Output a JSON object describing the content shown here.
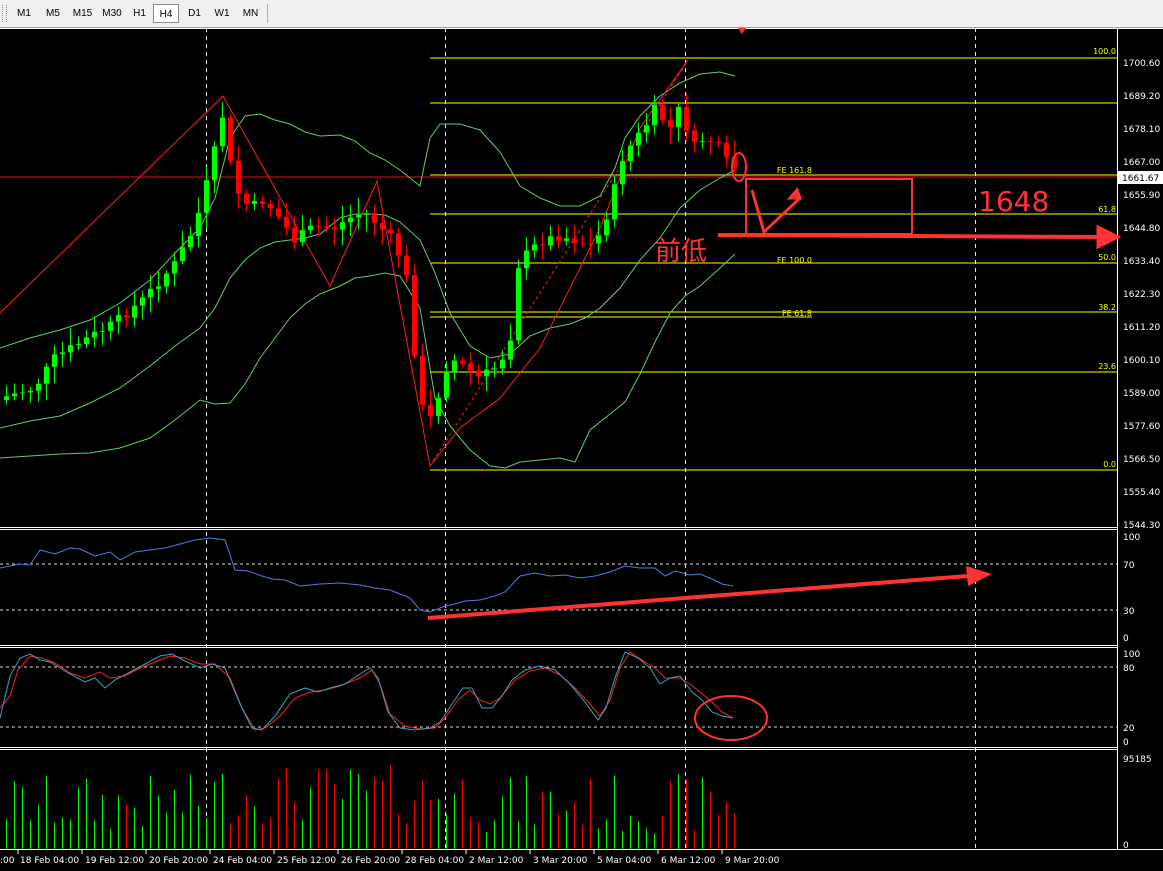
{
  "toolbar": {
    "timeframes": [
      "M1",
      "M5",
      "M15",
      "M30",
      "H1",
      "H4",
      "D1",
      "W1",
      "MN"
    ],
    "active": "H4"
  },
  "price_axis": {
    "labels": [
      "1700.60",
      "1689.20",
      "1678.10",
      "1667.00",
      "1655.90",
      "1644.80",
      "1633.40",
      "1622.30",
      "1611.20",
      "1600.10",
      "1589.00",
      "1577.60",
      "1566.50",
      "1555.40",
      "1544.30"
    ],
    "current_price": "1661.67"
  },
  "time_axis": {
    "labels": [
      "18 Feb 04:00",
      "19 Feb 12:00",
      "20 Feb 20:00",
      "24 Feb 04:00",
      "25 Feb 12:00",
      "26 Feb 20:00",
      "28 Feb 04:00",
      "2 Mar 12:00",
      "3 Mar 20:00",
      "5 Mar 04:00",
      "6 Mar 12:00",
      "9 Mar 20:00"
    ],
    "left_partial": ":00"
  },
  "fibo_retracement": {
    "levels": [
      "100.0",
      "61.8",
      "50.0",
      "38.2",
      "23.6",
      "0.0"
    ]
  },
  "fibo_expansion": {
    "levels": [
      "FE 161.8",
      "FE 100.0",
      "FE 61.8"
    ]
  },
  "annotations": {
    "target": "1648",
    "prior_low": "前低"
  },
  "rsi_axis": {
    "labels": [
      "100",
      "70",
      "30",
      "0"
    ]
  },
  "stoch_axis": {
    "labels": [
      "100",
      "80",
      "20",
      "0"
    ]
  },
  "volume_axis": {
    "labels": [
      "95185",
      "0"
    ]
  },
  "colors": {
    "background": "#000000",
    "bull": "#00ff00",
    "bear": "#ff0000",
    "fibo": "#ffff00",
    "bands": "#66cc66",
    "rsi": "#4a7fe0",
    "annotation": "#ff3333",
    "price_line": "#e01010"
  }
}
